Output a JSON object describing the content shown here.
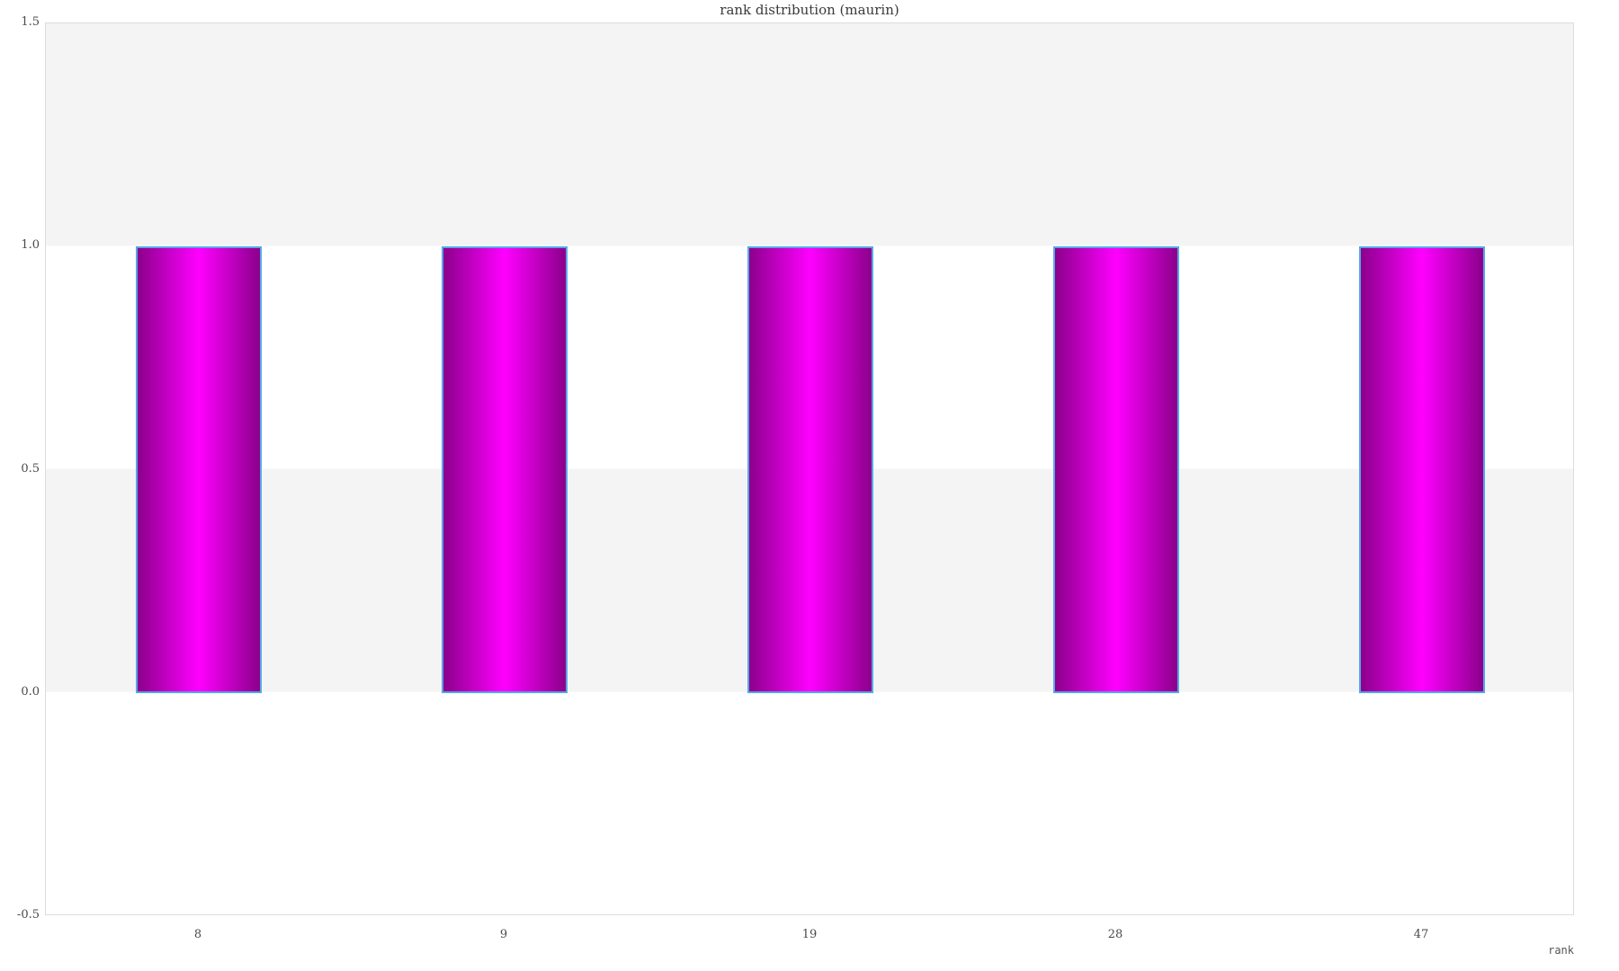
{
  "chart_data": {
    "type": "bar",
    "title": "rank distribution (maurin)",
    "xlabel": "rank",
    "ylabel": "",
    "categories": [
      "8",
      "9",
      "19",
      "28",
      "47"
    ],
    "values": [
      1.0,
      1.0,
      1.0,
      1.0,
      1.0
    ],
    "ylim": [
      -0.5,
      1.5
    ],
    "yticks": [
      1.5,
      1.0,
      0.5,
      0.0,
      -0.5
    ],
    "ytick_labels": [
      "1.5",
      "1.0",
      "0.5",
      "0.0",
      "-0.5"
    ],
    "bands": [
      [
        1.0,
        1.5
      ],
      [
        0.0,
        0.5
      ]
    ],
    "grid": false,
    "legend": "none",
    "colors": {
      "bar_fill_center": "#ff00ff",
      "bar_fill_edge": "#8b008b",
      "bar_outline": "#57a7e8",
      "band_fill": "#f4f4f4",
      "plot_border": "#dcdcdc",
      "title_text": "#3a3a3a",
      "tick_text": "#4a4a4a"
    }
  }
}
